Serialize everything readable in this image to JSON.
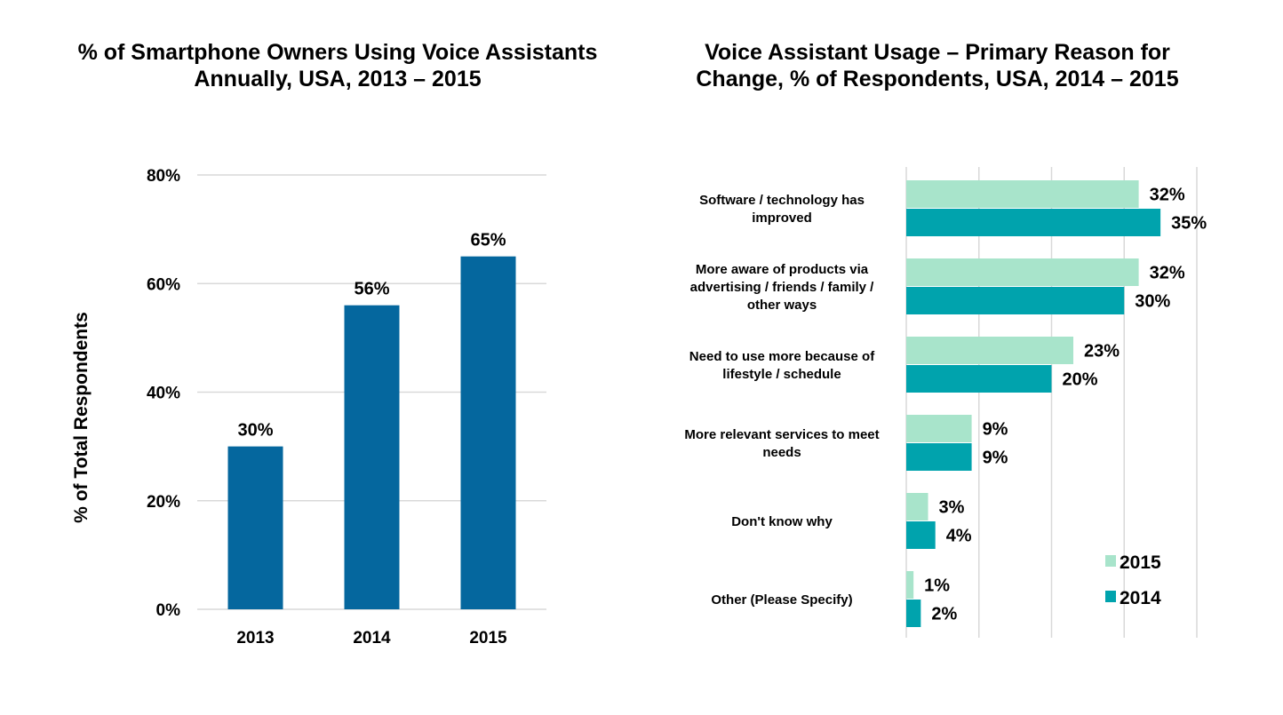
{
  "chart_data": [
    {
      "type": "bar",
      "orientation": "vertical",
      "title": "% of Smartphone Owners Using Voice Assistants Annually, USA, 2013 – 2015",
      "title_lines": [
        "% of Smartphone Owners Using Voice Assistants",
        "Annually, USA, 2013 – 2015"
      ],
      "xlabel": "",
      "ylabel": "% of Total Respondents",
      "categories": [
        "2013",
        "2014",
        "2015"
      ],
      "values": [
        30,
        56,
        65
      ],
      "data_labels": [
        "30%",
        "56%",
        "65%"
      ],
      "ylim": [
        0,
        80
      ],
      "yticks": [
        0,
        20,
        40,
        60,
        80
      ],
      "ytick_labels": [
        "0%",
        "20%",
        "40%",
        "60%",
        "80%"
      ],
      "grid": true,
      "legend": "none",
      "color": "#05679E"
    },
    {
      "type": "bar",
      "orientation": "horizontal",
      "title": "Voice Assistant Usage – Primary Reason for Change, % of Respondents, USA, 2014 – 2015",
      "title_lines": [
        "Voice Assistant Usage – Primary Reason for",
        "Change, % of Respondents, USA, 2014 – 2015"
      ],
      "xlabel": "",
      "ylabel": "",
      "categories": [
        [
          "Software / technology has",
          "improved"
        ],
        [
          "More aware of products via",
          "advertising / friends / family /",
          "other ways"
        ],
        [
          "Need to use more because of",
          "lifestyle / schedule"
        ],
        [
          "More relevant services to meet",
          "needs"
        ],
        [
          "Don't know why"
        ],
        [
          "Other (Please Specify)"
        ]
      ],
      "series": [
        {
          "name": "2015",
          "color": "#A8E4CB",
          "values": [
            32,
            32,
            23,
            9,
            3,
            1
          ],
          "data_labels": [
            "32%",
            "32%",
            "23%",
            "9%",
            "3%",
            "1%"
          ]
        },
        {
          "name": "2014",
          "color": "#00A3AD",
          "values": [
            35,
            30,
            20,
            9,
            4,
            2
          ],
          "data_labels": [
            "35%",
            "30%",
            "20%",
            "9%",
            "4%",
            "2%"
          ]
        }
      ],
      "xlim": [
        0,
        40
      ],
      "xticks": [
        0,
        10,
        20,
        30,
        40
      ],
      "grid": true,
      "tick_labels_shown": false,
      "legend": "bottom-right"
    }
  ]
}
